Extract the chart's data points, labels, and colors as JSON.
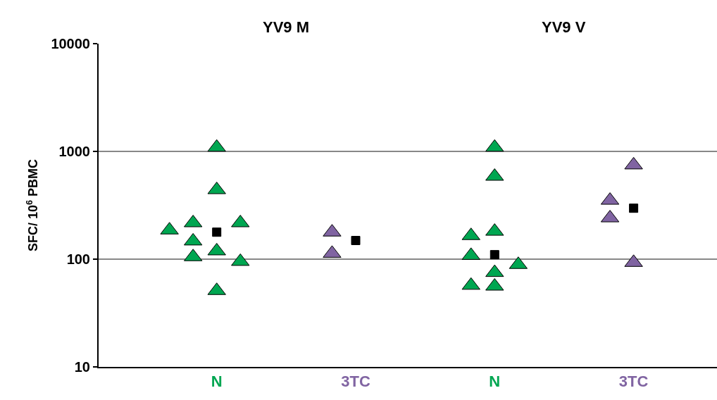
{
  "chart_data": {
    "type": "scatter",
    "ylabel": "SFC/ 10$^{6}$ PBMC",
    "annotations": [
      "YV9 M",
      "YV9 V"
    ],
    "categories": [
      "N",
      "3TC",
      "N",
      "3TC"
    ],
    "log": "y",
    "ylim": [
      10,
      10000
    ],
    "yticks": [
      10,
      100,
      1000,
      10000
    ],
    "grid": "y",
    "marker": "triangle",
    "series": [
      {
        "color": "#00a651",
        "values": [
          1090,
          null,
          1090,
          null
        ]
      },
      {
        "color": "#00a651",
        "values": [
          440,
          null,
          586,
          null
        ]
      },
      {
        "color": "#00a651",
        "values": [
          217,
          null,
          165,
          null
        ]
      },
      {
        "color": "#00a651",
        "values": [
          217,
          null,
          181,
          null
        ]
      },
      {
        "color": "#00a651",
        "values": [
          186,
          null,
          108,
          null
        ]
      },
      {
        "color": "#00a651",
        "values": [
          147,
          null,
          89,
          null
        ]
      },
      {
        "color": "#00a651",
        "values": [
          119,
          null,
          75,
          null
        ]
      },
      {
        "color": "#00a651",
        "values": [
          105,
          null,
          56,
          null
        ]
      },
      {
        "color": "#00a651",
        "values": [
          95,
          null,
          57,
          null
        ]
      },
      {
        "color": "#00a651",
        "values": [
          51,
          null,
          null,
          null
        ]
      },
      {
        "color": "#8064a2",
        "values": [
          null,
          178,
          null,
          747
        ]
      },
      {
        "color": "#8064a2",
        "values": [
          null,
          113,
          null,
          351
        ]
      },
      {
        "color": "#8064a2",
        "values": [
          null,
          null,
          null,
          241
        ]
      },
      {
        "color": "#8064a2",
        "values": [
          null,
          null,
          null,
          93
        ]
      },
      {
        "color": "#000000",
        "marker": "square",
        "values": [
          178,
          149,
          110,
          297
        ]
      }
    ]
  }
}
